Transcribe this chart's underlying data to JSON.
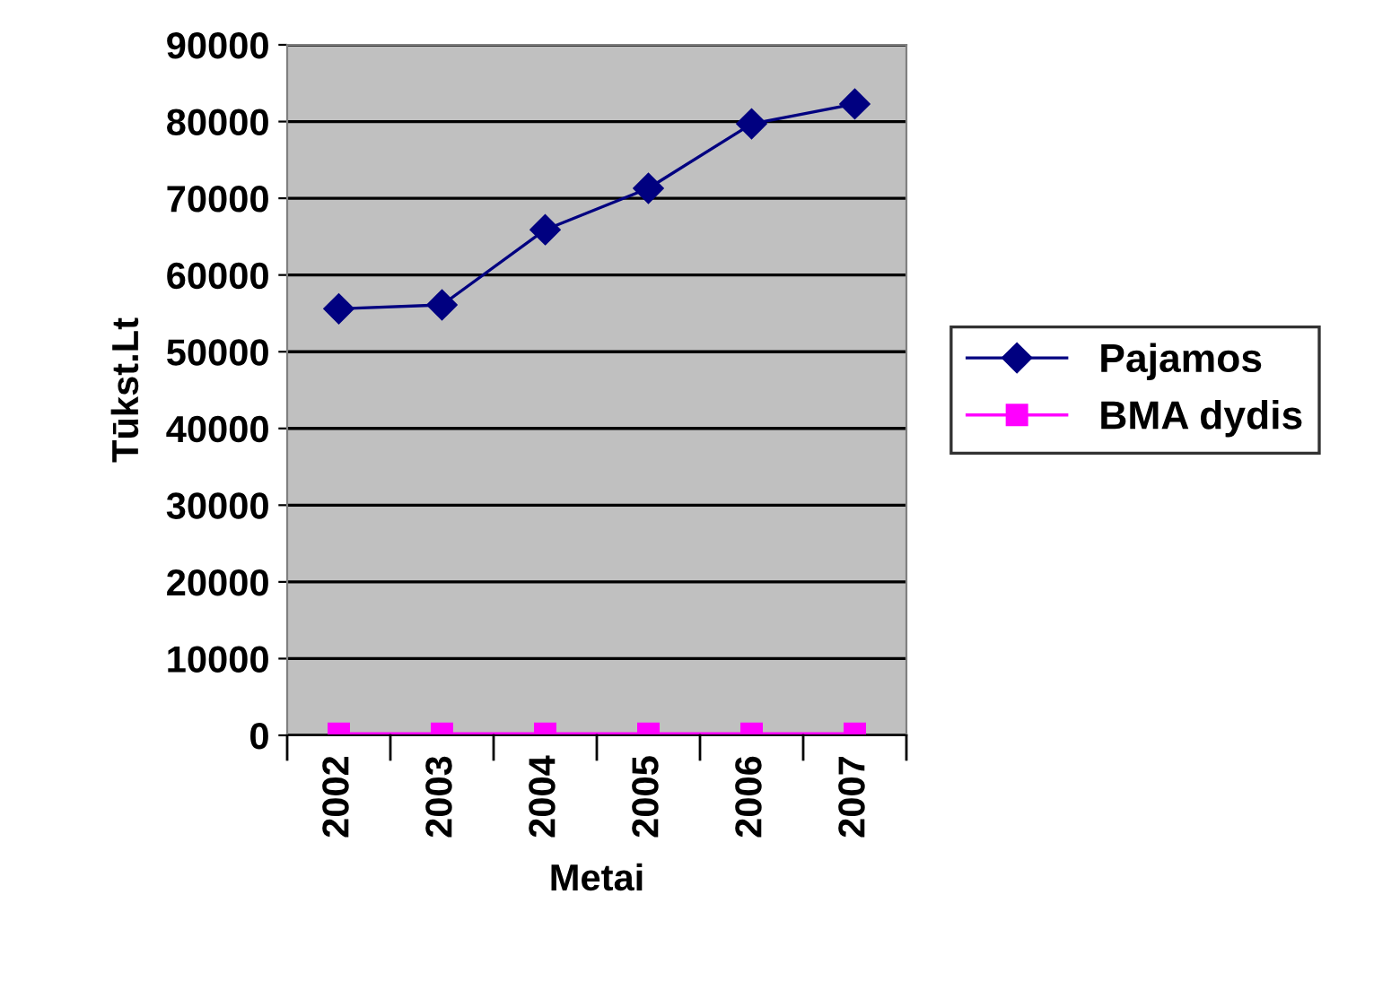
{
  "chart_data": {
    "type": "line",
    "xlabel": "Metai",
    "ylabel": "Tūkst.Lt",
    "categories": [
      "2002",
      "2003",
      "2004",
      "2005",
      "2006",
      "2007"
    ],
    "series": [
      {
        "name": "Pajamos",
        "color": "#000080",
        "marker": "diamond",
        "values": [
          55600,
          56100,
          65900,
          71300,
          79700,
          82300
        ]
      },
      {
        "name": "BMA dydis",
        "color": "#ff00ff",
        "marker": "square",
        "values": [
          200,
          200,
          200,
          200,
          200,
          200
        ]
      }
    ],
    "ylim": [
      0,
      90000
    ],
    "yticks": [
      0,
      10000,
      20000,
      30000,
      40000,
      50000,
      60000,
      70000,
      80000,
      90000
    ],
    "grid": "y",
    "legend": "right"
  }
}
